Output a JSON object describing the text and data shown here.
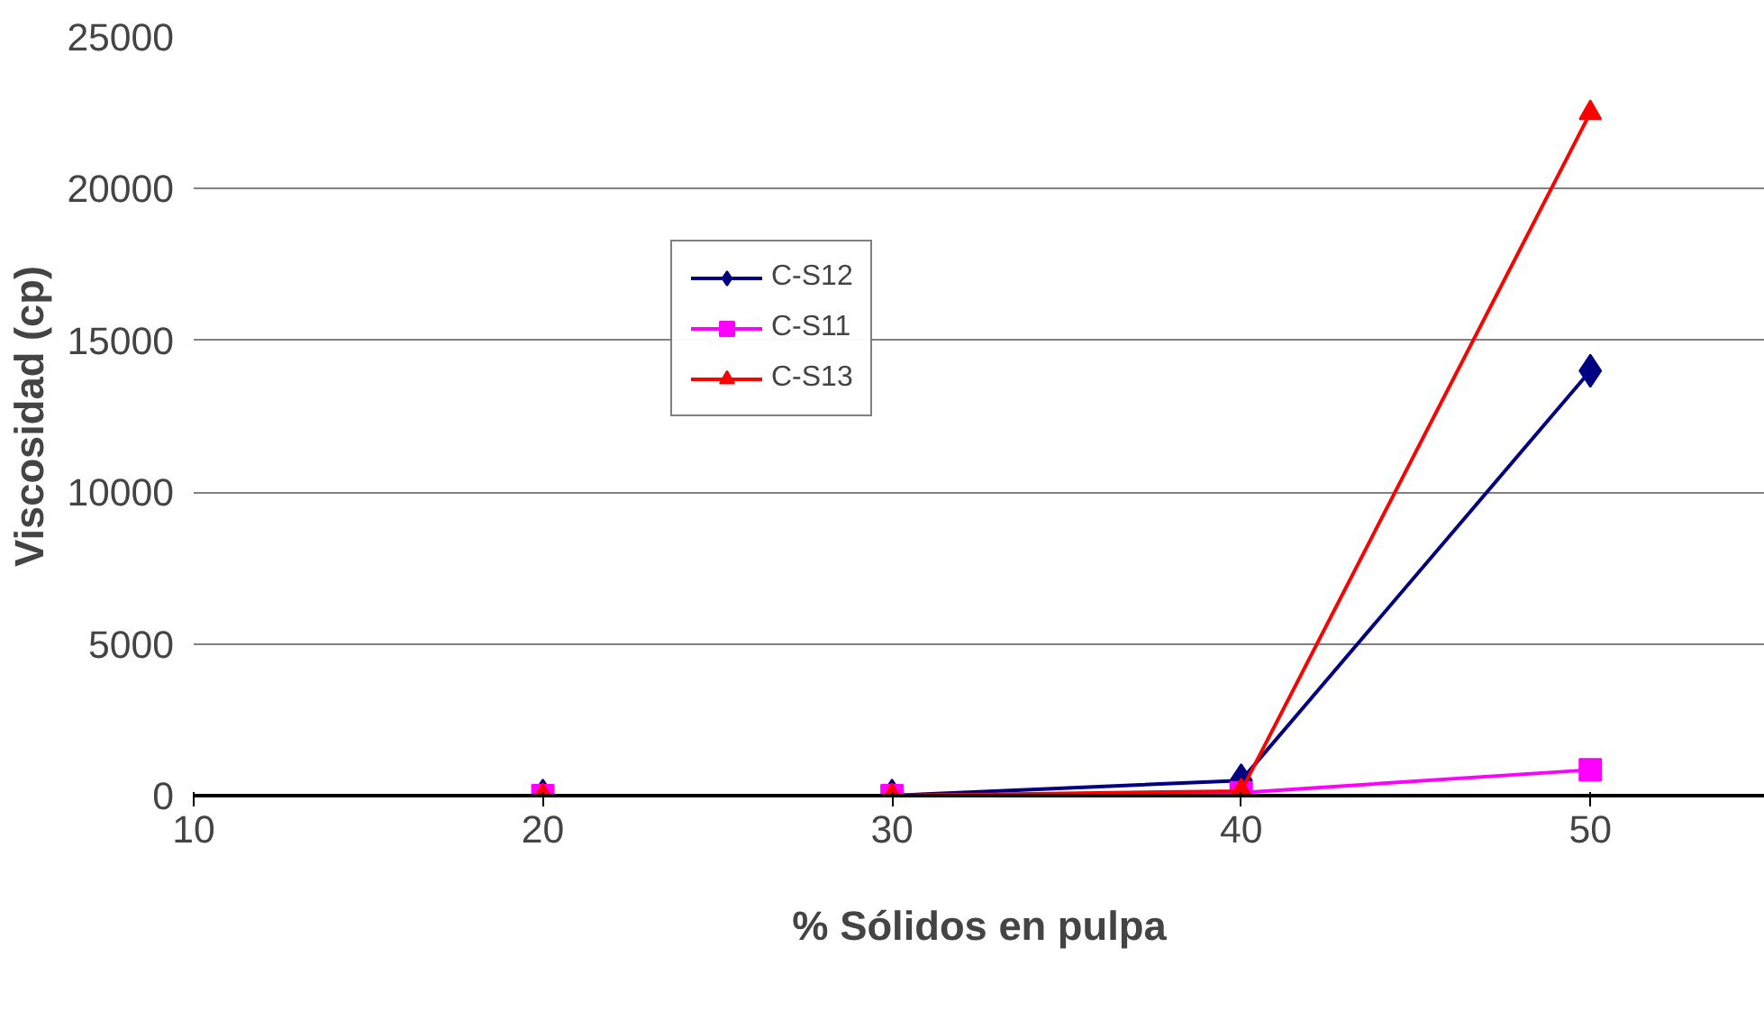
{
  "chart_data": {
    "type": "line",
    "xlabel": "% Sólidos en pulpa",
    "ylabel": "Viscosidad (cp)",
    "x": [
      20,
      30,
      40,
      50
    ],
    "series": [
      {
        "name": "C-S12",
        "color": "#000080",
        "marker": "diamond",
        "values": [
          0,
          0,
          500,
          14000
        ]
      },
      {
        "name": "C-S11",
        "color": "#ff00ff",
        "marker": "square",
        "values": [
          0,
          0,
          100,
          850
        ]
      },
      {
        "name": "C-S13",
        "color": "#ff0000",
        "marker": "triangle",
        "values": [
          0,
          0,
          150,
          22500
        ]
      }
    ],
    "xlim": [
      10,
      55
    ],
    "xticks": [
      10,
      20,
      30,
      40,
      50
    ],
    "ylim": [
      0,
      25000
    ],
    "yticks": [
      0,
      5000,
      10000,
      15000,
      20000,
      25000
    ],
    "grid": "y",
    "legend": "left",
    "line_style": "solid"
  }
}
